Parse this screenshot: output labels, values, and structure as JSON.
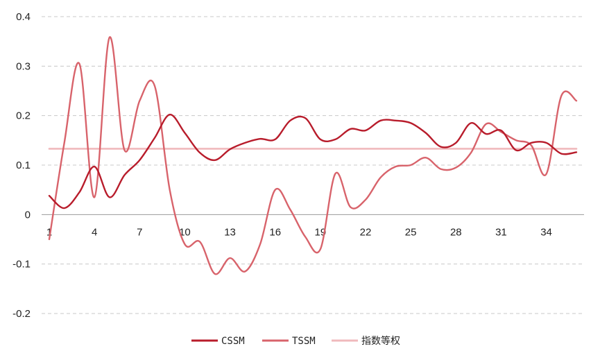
{
  "chart_data": {
    "type": "line",
    "x": [
      1,
      2,
      3,
      4,
      5,
      6,
      7,
      8,
      9,
      10,
      11,
      12,
      13,
      14,
      15,
      16,
      17,
      18,
      19,
      20,
      21,
      22,
      23,
      24,
      25,
      26,
      27,
      28,
      29,
      30,
      31,
      32,
      33,
      34,
      35,
      36
    ],
    "x_ticks": [
      "1",
      "4",
      "7",
      "10",
      "13",
      "16",
      "19",
      "22",
      "25",
      "28",
      "31",
      "34"
    ],
    "y_ticks": [
      "0.4",
      "0.3",
      "0.2",
      "0.1",
      "0",
      "-0.1",
      "-0.2"
    ],
    "ylim": [
      -0.2,
      0.4
    ],
    "xlim": [
      1,
      36
    ],
    "grid": true,
    "legend": "bottom",
    "series": [
      {
        "name": "CSSM",
        "color": "#b81c2b",
        "values": [
          0.038,
          0.013,
          0.045,
          0.097,
          0.035,
          0.08,
          0.11,
          0.155,
          0.202,
          0.165,
          0.125,
          0.11,
          0.132,
          0.145,
          0.153,
          0.152,
          0.19,
          0.195,
          0.152,
          0.152,
          0.173,
          0.17,
          0.19,
          0.19,
          0.185,
          0.165,
          0.137,
          0.145,
          0.185,
          0.163,
          0.17,
          0.13,
          0.145,
          0.145,
          0.123,
          0.126
        ]
      },
      {
        "name": "TSSM",
        "color": "#d8636b",
        "values": [
          -0.05,
          0.145,
          0.305,
          0.035,
          0.358,
          0.13,
          0.23,
          0.26,
          0.05,
          -0.06,
          -0.055,
          -0.12,
          -0.088,
          -0.115,
          -0.06,
          0.05,
          0.01,
          -0.045,
          -0.07,
          0.083,
          0.015,
          0.03,
          0.075,
          0.097,
          0.1,
          0.115,
          0.092,
          0.095,
          0.125,
          0.183,
          0.167,
          0.15,
          0.14,
          0.082,
          0.24,
          0.23
        ]
      },
      {
        "name": "指数等权",
        "color": "#f0b9bc",
        "values": [
          0.133,
          0.133,
          0.133,
          0.133,
          0.133,
          0.133,
          0.133,
          0.133,
          0.133,
          0.133,
          0.133,
          0.133,
          0.133,
          0.133,
          0.133,
          0.133,
          0.133,
          0.133,
          0.133,
          0.133,
          0.133,
          0.133,
          0.133,
          0.133,
          0.133,
          0.133,
          0.133,
          0.133,
          0.133,
          0.133,
          0.133,
          0.133,
          0.133,
          0.133,
          0.133,
          0.133
        ]
      }
    ]
  }
}
